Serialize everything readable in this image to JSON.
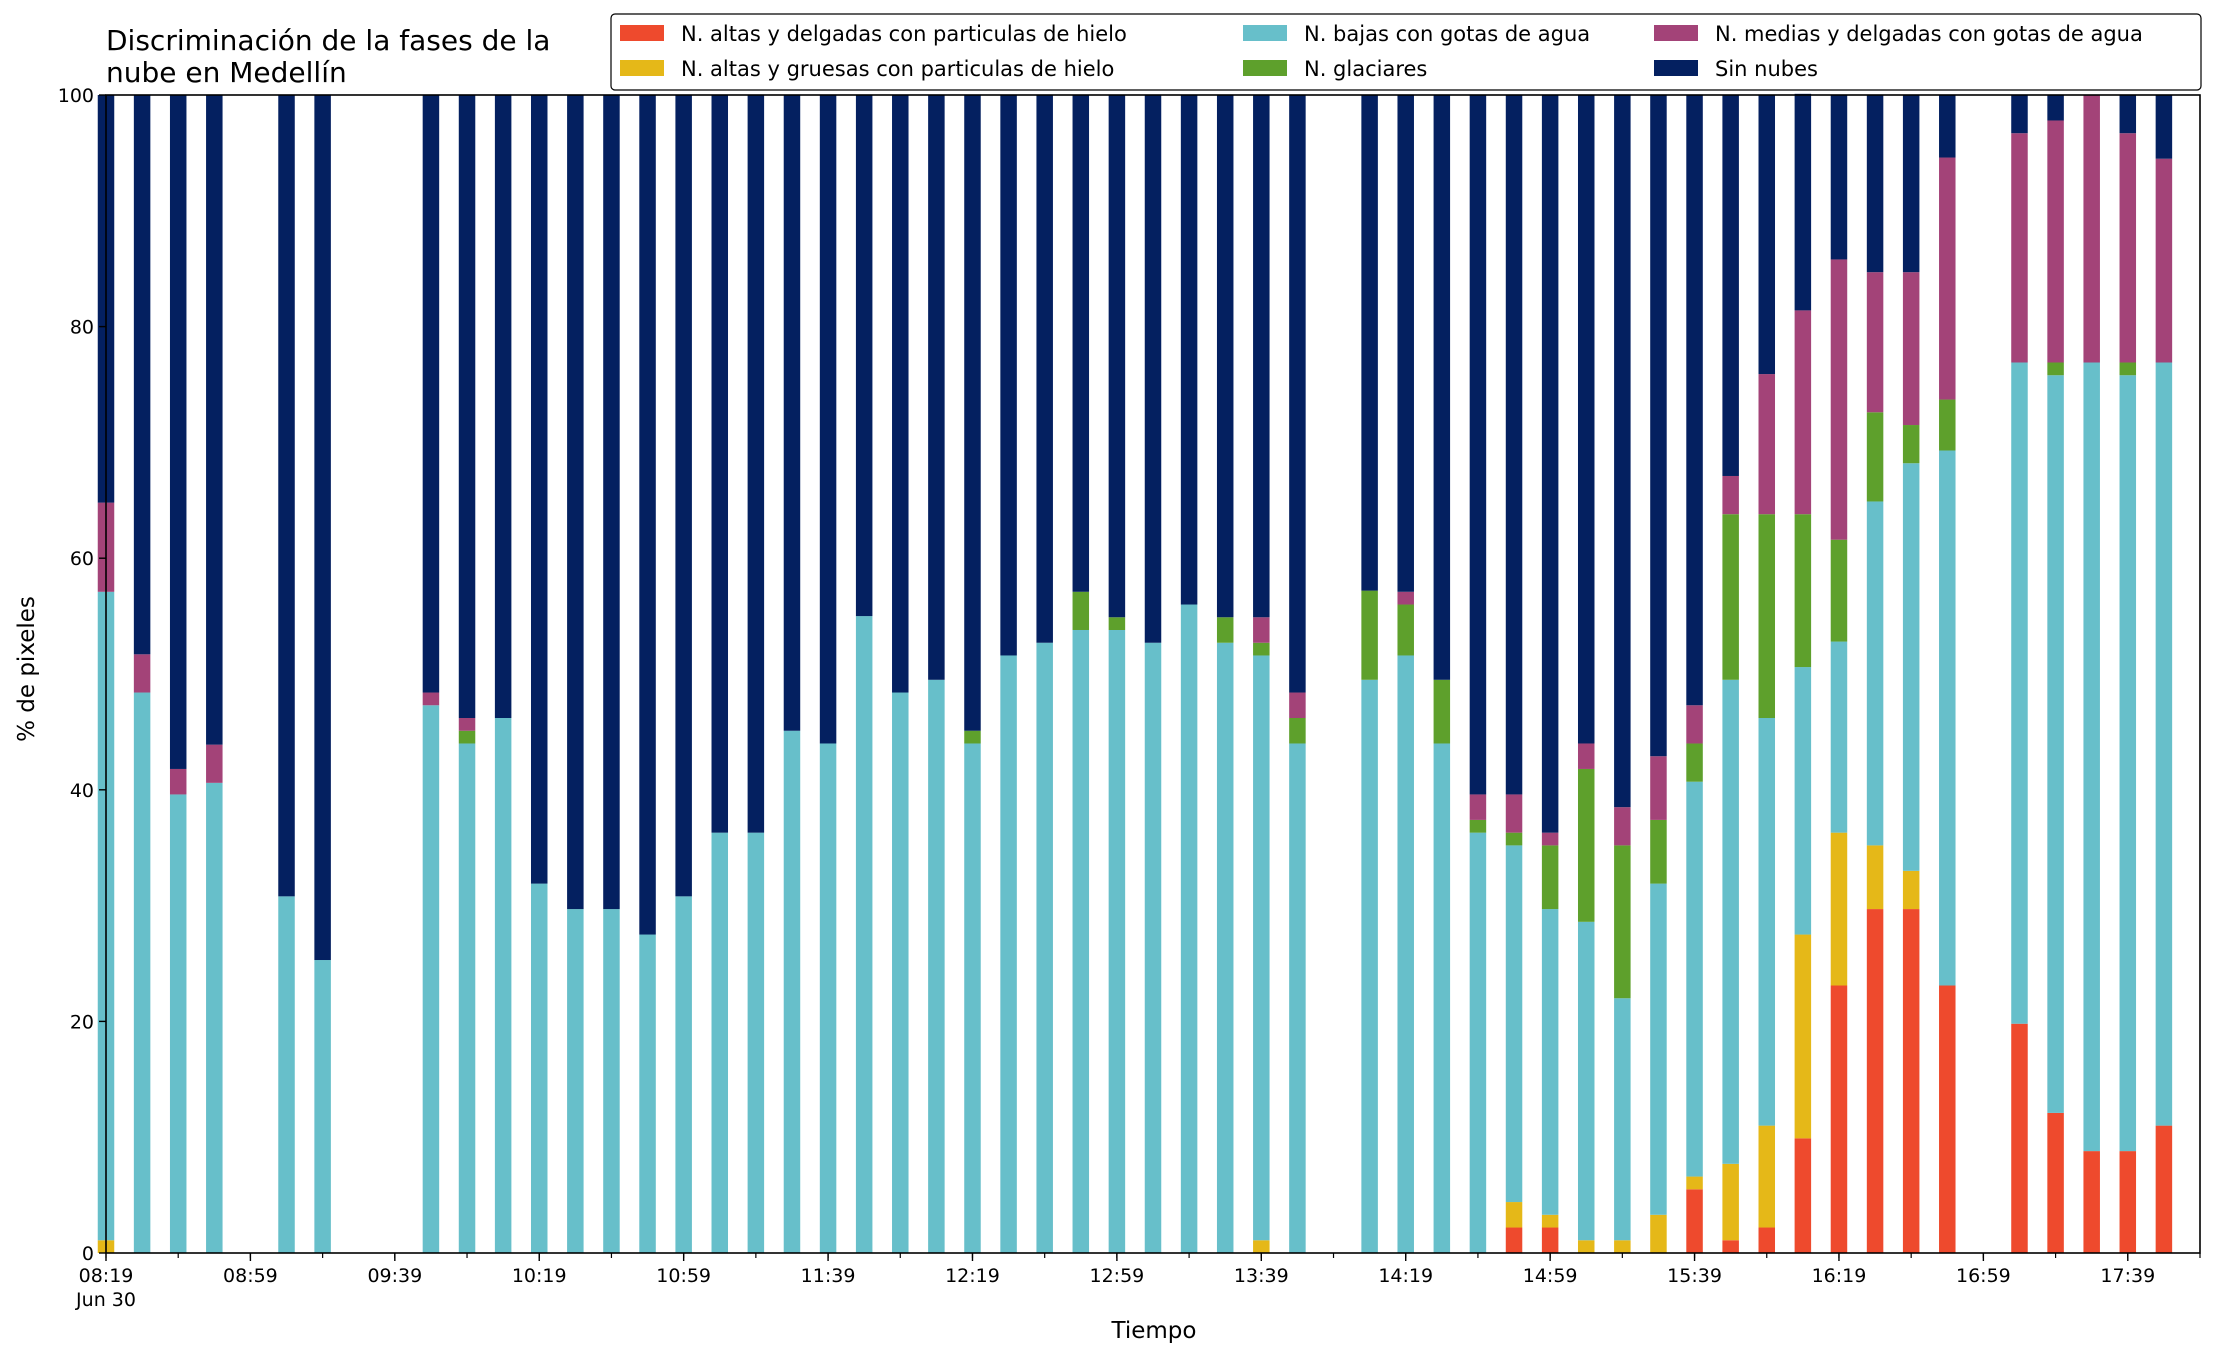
{
  "chart_data": {
    "type": "bar",
    "stacked": true,
    "title": "Discriminación de la fases de la nube en Medellín",
    "title_lines": [
      "Discriminación de la fases de la",
      "nube en Medellín"
    ],
    "xlabel": "Tiempo",
    "ylabel": "% de pixeles",
    "ylim": [
      0,
      100
    ],
    "yticks": [
      0,
      20,
      40,
      60,
      80,
      100
    ],
    "x_range": [
      "08:19",
      "17:59"
    ],
    "xtick_labels": [
      "08:19",
      "08:59",
      "09:39",
      "10:19",
      "10:59",
      "11:39",
      "12:19",
      "12:59",
      "13:39",
      "14:19",
      "14:59",
      "15:39",
      "16:19",
      "16:59",
      "17:39"
    ],
    "xtick_sublabel": "Jun 30",
    "minor_tick_interval_minutes": 20,
    "bar_interval_minutes": 10,
    "grid": false,
    "legend_position": "top-right",
    "times": [
      "08:19",
      "08:29",
      "08:39",
      "08:49",
      "09:09",
      "09:19",
      "09:49",
      "09:59",
      "10:09",
      "10:19",
      "10:29",
      "10:39",
      "10:49",
      "10:59",
      "11:09",
      "11:19",
      "11:29",
      "11:39",
      "11:49",
      "11:59",
      "12:09",
      "12:19",
      "12:29",
      "12:39",
      "12:49",
      "12:59",
      "13:09",
      "13:19",
      "13:29",
      "13:39",
      "13:49",
      "14:09",
      "14:19",
      "14:29",
      "14:39",
      "14:49",
      "14:59",
      "15:09",
      "15:19",
      "15:29",
      "15:39",
      "15:49",
      "15:59",
      "16:09",
      "16:19",
      "16:29",
      "16:39",
      "16:49",
      "17:09",
      "17:19",
      "17:29",
      "17:39",
      "17:49"
    ],
    "series": [
      {
        "name": "N. altas y delgadas con particulas de hielo",
        "color": "#ee4a2d",
        "values": [
          0,
          0,
          0,
          0,
          0,
          0,
          0,
          0,
          0,
          0,
          0,
          0,
          0,
          0,
          0,
          0,
          0,
          0,
          0,
          0,
          0,
          0,
          0,
          0,
          0,
          0,
          0,
          0,
          0,
          0,
          0,
          0,
          0,
          0,
          0,
          2.2,
          2.2,
          0,
          0,
          0,
          5.5,
          1.1,
          2.2,
          9.9,
          23.1,
          29.7,
          29.7,
          23.1,
          19.8,
          12.1,
          8.8,
          8.8,
          11.0
        ]
      },
      {
        "name": "N. altas y gruesas con particulas de hielo",
        "color": "#e5b818",
        "values": [
          1.1,
          0,
          0,
          0,
          0,
          0,
          0,
          0,
          0,
          0,
          0,
          0,
          0,
          0,
          0,
          0,
          0,
          0,
          0,
          0,
          0,
          0,
          0,
          0,
          0,
          0,
          0,
          0,
          0,
          1.1,
          0,
          0,
          0,
          0,
          0,
          2.2,
          1.1,
          1.1,
          1.1,
          3.3,
          1.1,
          6.6,
          8.8,
          17.6,
          13.2,
          5.5,
          3.3,
          0,
          0,
          0,
          0,
          0,
          0
        ]
      },
      {
        "name": "N. bajas con gotas de agua",
        "color": "#67bfca",
        "values": [
          56.0,
          48.4,
          39.6,
          40.6,
          30.8,
          25.3,
          47.3,
          44.0,
          46.2,
          31.9,
          29.7,
          29.7,
          27.5,
          30.8,
          36.3,
          36.3,
          45.1,
          44.0,
          55.0,
          48.4,
          49.5,
          44.0,
          51.6,
          52.7,
          53.8,
          53.8,
          52.7,
          56.0,
          52.7,
          50.5,
          44.0,
          49.5,
          51.6,
          44.0,
          36.3,
          30.8,
          26.4,
          27.5,
          20.9,
          28.6,
          34.1,
          41.8,
          35.2,
          23.1,
          16.5,
          29.7,
          35.2,
          46.2,
          57.1,
          63.7,
          68.1,
          67.0,
          65.9
        ]
      },
      {
        "name": "N. glaciares",
        "color": "#5ea02c",
        "values": [
          0,
          0,
          0,
          0,
          0,
          0,
          0,
          1.1,
          0,
          0,
          0,
          0,
          0,
          0,
          0,
          0,
          0,
          0,
          0,
          0,
          0,
          1.1,
          0,
          0,
          3.3,
          1.1,
          0,
          0,
          2.2,
          1.1,
          2.2,
          7.7,
          4.4,
          5.5,
          1.1,
          1.1,
          5.5,
          13.2,
          13.2,
          5.5,
          3.3,
          14.3,
          17.6,
          13.2,
          8.8,
          7.7,
          3.3,
          4.4,
          0,
          1.1,
          0,
          1.1,
          0
        ]
      },
      {
        "name": "N. medias y delgadas con gotas de agua",
        "color": "#a34378",
        "values": [
          7.7,
          3.3,
          2.2,
          3.3,
          0,
          0,
          1.1,
          1.1,
          0,
          0,
          0,
          0,
          0,
          0,
          0,
          0,
          0,
          0,
          0,
          0,
          0,
          0,
          0,
          0,
          0,
          0,
          0,
          0,
          0,
          2.2,
          2.2,
          0,
          1.1,
          0,
          2.2,
          3.3,
          1.1,
          2.2,
          3.3,
          5.5,
          3.3,
          3.3,
          12.1,
          17.6,
          24.2,
          12.1,
          13.2,
          20.9,
          19.8,
          20.9,
          23.1,
          19.8,
          17.6
        ]
      },
      {
        "name": "Sin nubes",
        "color": "#042060",
        "values": [
          35.2,
          48.3,
          58.2,
          56.1,
          69.2,
          74.7,
          51.6,
          53.8,
          53.8,
          68.1,
          70.3,
          70.3,
          72.5,
          69.2,
          63.7,
          63.7,
          54.9,
          56.0,
          45.0,
          51.6,
          50.5,
          54.9,
          48.4,
          47.3,
          42.9,
          45.1,
          47.3,
          44.0,
          45.1,
          45.1,
          51.6,
          42.8,
          42.9,
          50.5,
          60.4,
          60.4,
          63.7,
          56.0,
          61.5,
          57.1,
          52.7,
          32.9,
          24.1,
          18.7,
          14.2,
          15.3,
          15.3,
          5.4,
          3.3,
          2.2,
          0,
          3.3,
          5.5
        ]
      }
    ]
  }
}
